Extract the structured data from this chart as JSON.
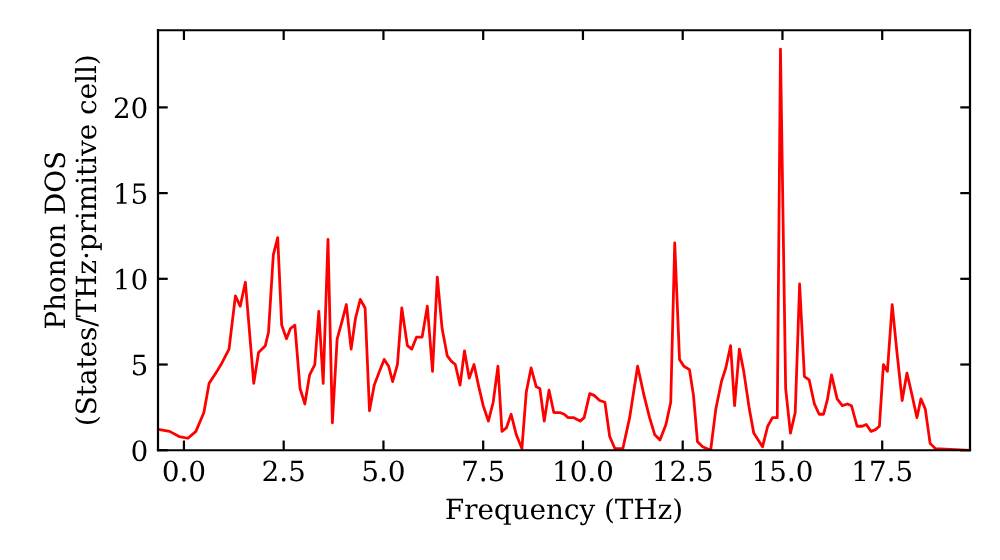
{
  "chart_data": {
    "type": "line",
    "xlabel": "Frequency (THz)",
    "ylabel": "Phonon DOS\n(States/THz·primitive cell)",
    "xlim": [
      -0.65,
      19.7
    ],
    "ylim": [
      0,
      24.5
    ],
    "xticks": [
      {
        "value": 0,
        "label": "0.0"
      },
      {
        "value": 2.5,
        "label": "2.5"
      },
      {
        "value": 5,
        "label": "5.0"
      },
      {
        "value": 7.5,
        "label": "7.5"
      },
      {
        "value": 10,
        "label": "10.0"
      },
      {
        "value": 12.5,
        "label": "12.5"
      },
      {
        "value": 15,
        "label": "15.0"
      },
      {
        "value": 17.5,
        "label": "17.5"
      }
    ],
    "yticks": [
      0,
      5,
      10,
      15,
      20
    ],
    "grid": false,
    "legend": false,
    "marker": "none",
    "line_style": "solid",
    "series": [
      {
        "color": "#ff0000",
        "x": [
          -0.61,
          -0.36,
          -0.12,
          0.1,
          0.3,
          0.5,
          0.63,
          0.8,
          0.93,
          1.13,
          1.29,
          1.41,
          1.54,
          1.75,
          1.87,
          2.04,
          2.12,
          2.24,
          2.35,
          2.45,
          2.57,
          2.67,
          2.78,
          2.91,
          3.03,
          3.15,
          3.28,
          3.38,
          3.49,
          3.61,
          3.72,
          3.84,
          3.96,
          4.07,
          4.19,
          4.3,
          4.42,
          4.54,
          4.65,
          4.77,
          4.9,
          5.02,
          5.13,
          5.23,
          5.35,
          5.46,
          5.6,
          5.71,
          5.83,
          5.97,
          6.1,
          6.23,
          6.35,
          6.47,
          6.6,
          6.7,
          6.8,
          6.92,
          7.03,
          7.15,
          7.27,
          7.38,
          7.5,
          7.63,
          7.75,
          7.87,
          7.97,
          8.08,
          8.2,
          8.33,
          8.47,
          8.58,
          8.7,
          8.83,
          8.92,
          9.03,
          9.15,
          9.27,
          9.42,
          9.53,
          9.63,
          9.77,
          9.93,
          10.03,
          10.17,
          10.28,
          10.42,
          10.55,
          10.67,
          10.8,
          11.0,
          11.17,
          11.37,
          11.53,
          11.67,
          11.8,
          11.93,
          12.08,
          12.2,
          12.3,
          12.42,
          12.53,
          12.67,
          12.77,
          12.87,
          13.0,
          13.2,
          13.33,
          13.47,
          13.58,
          13.7,
          13.8,
          13.92,
          14.03,
          14.17,
          14.28,
          14.42,
          14.5,
          14.63,
          14.75,
          14.87,
          14.95,
          15.08,
          15.2,
          15.32,
          15.43,
          15.55,
          15.67,
          15.8,
          15.92,
          16.03,
          16.13,
          16.23,
          16.37,
          16.5,
          16.63,
          16.73,
          16.87,
          17.0,
          17.1,
          17.22,
          17.33,
          17.43,
          17.53,
          17.63,
          17.75,
          17.87,
          18.0,
          18.12,
          18.23,
          18.37,
          18.47,
          18.58,
          18.7,
          18.83,
          19.67
        ],
        "values": [
          1.2,
          1.1,
          0.8,
          0.7,
          1.1,
          2.2,
          3.9,
          4.5,
          5.0,
          5.9,
          9.0,
          8.4,
          9.8,
          3.9,
          5.7,
          6.1,
          6.9,
          11.4,
          12.4,
          7.3,
          6.5,
          7.1,
          7.3,
          3.6,
          2.7,
          4.4,
          5.0,
          8.1,
          3.9,
          12.3,
          1.6,
          6.5,
          7.5,
          8.5,
          5.9,
          7.7,
          8.8,
          8.3,
          2.3,
          3.8,
          4.6,
          5.3,
          4.9,
          4.0,
          5.0,
          8.3,
          6.1,
          5.9,
          6.6,
          6.6,
          8.4,
          4.6,
          10.1,
          7.1,
          5.5,
          5.2,
          5.0,
          3.8,
          5.8,
          4.2,
          5.0,
          3.8,
          2.6,
          1.7,
          2.8,
          4.9,
          1.1,
          1.3,
          2.1,
          0.9,
          0.1,
          3.4,
          4.8,
          3.7,
          3.6,
          1.7,
          3.5,
          2.2,
          2.2,
          2.1,
          1.9,
          1.9,
          1.7,
          1.9,
          3.3,
          3.2,
          2.9,
          2.8,
          0.8,
          0.1,
          0.1,
          1.9,
          4.9,
          3.2,
          1.9,
          0.9,
          0.6,
          1.5,
          2.8,
          12.1,
          5.3,
          4.9,
          4.7,
          3.2,
          0.5,
          0.2,
          0.0,
          2.4,
          4.0,
          4.8,
          6.1,
          2.6,
          5.9,
          4.6,
          2.4,
          1.0,
          0.5,
          0.2,
          1.4,
          1.9,
          1.9,
          23.4,
          3.6,
          1.0,
          2.2,
          9.7,
          4.3,
          4.1,
          2.7,
          2.1,
          2.1,
          3.0,
          4.4,
          3.0,
          2.6,
          2.7,
          2.6,
          1.4,
          1.4,
          1.5,
          1.1,
          1.2,
          1.4,
          5.0,
          4.6,
          8.5,
          5.7,
          2.9,
          4.5,
          3.4,
          1.9,
          3.0,
          2.4,
          0.4,
          0.1,
          0.0
        ]
      }
    ]
  }
}
